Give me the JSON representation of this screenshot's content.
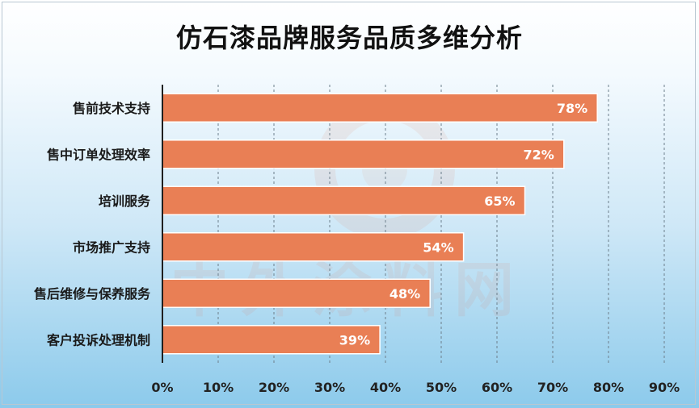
{
  "chart_data": {
    "type": "bar",
    "orientation": "horizontal",
    "title": "仿石漆品牌服务品质多维分析",
    "categories": [
      "售前技术支持",
      "售中订单处理效率",
      "培训服务",
      "市场推广支持",
      "售后维修与保养服务",
      "客户投诉处理机制"
    ],
    "values": [
      78,
      72,
      65,
      54,
      48,
      39
    ],
    "value_labels": [
      "78%",
      "72%",
      "65%",
      "54%",
      "48%",
      "39%"
    ],
    "xlim": [
      0,
      90
    ],
    "xticks": [
      "0%",
      "10%",
      "20%",
      "30%",
      "40%",
      "50%",
      "60%",
      "70%",
      "80%",
      "90%"
    ],
    "xlabel": "",
    "ylabel": "",
    "grid": "vertical dashed",
    "legend": "none",
    "bar_color": "#e97f55",
    "bar_edge_color": "#ffffff"
  },
  "watermark": {
    "text": "中外涂料网",
    "color": "#e07a55"
  }
}
